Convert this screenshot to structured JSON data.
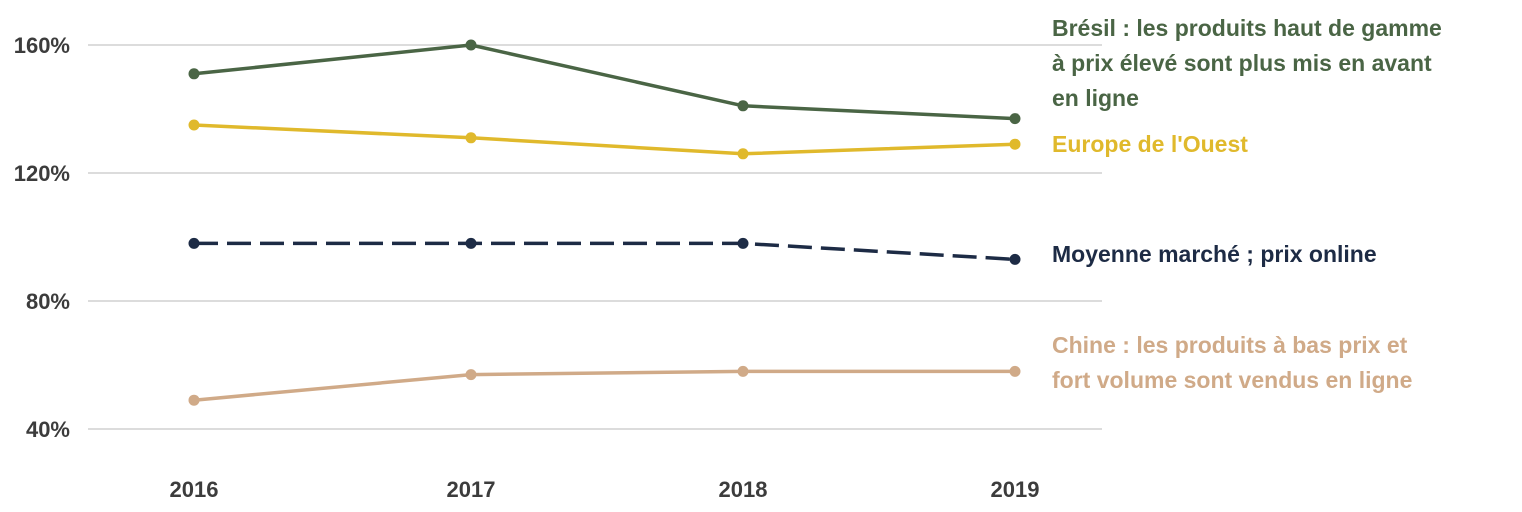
{
  "chart_data": {
    "type": "line",
    "x": [
      "2016",
      "2017",
      "2018",
      "2019"
    ],
    "y_ticks": [
      "160%",
      "120%",
      "80%",
      "40%"
    ],
    "ylim": [
      40,
      160
    ],
    "grid": true,
    "series": [
      {
        "name": "Brésil : les produits haut de gamme à prix élevé sont plus mis en avant en ligne",
        "label_lines": [
          "Brésil : les produits haut de gamme",
          "à prix élevé sont plus mis en avant",
          "en ligne"
        ],
        "color": "#4a6545",
        "dashed": false,
        "values": [
          151,
          160,
          141,
          137
        ]
      },
      {
        "name": "Europe de l'Ouest",
        "label_lines": [
          "Europe de l'Ouest"
        ],
        "color": "#e0b92c",
        "dashed": false,
        "values": [
          135,
          131,
          126,
          129
        ]
      },
      {
        "name": "Moyenne marché ; prix online",
        "label_lines": [
          "Moyenne marché ; prix online"
        ],
        "color": "#1d2b45",
        "dashed": true,
        "values": [
          98,
          98,
          98,
          93
        ]
      },
      {
        "name": "Chine : les produits à bas prix et fort volume sont vendus en ligne",
        "label_lines": [
          "Chine : les produits à bas prix et",
          "fort volume sont vendus en ligne"
        ],
        "color": "#d0aa88",
        "dashed": false,
        "values": [
          49,
          57,
          58,
          58
        ]
      }
    ]
  }
}
